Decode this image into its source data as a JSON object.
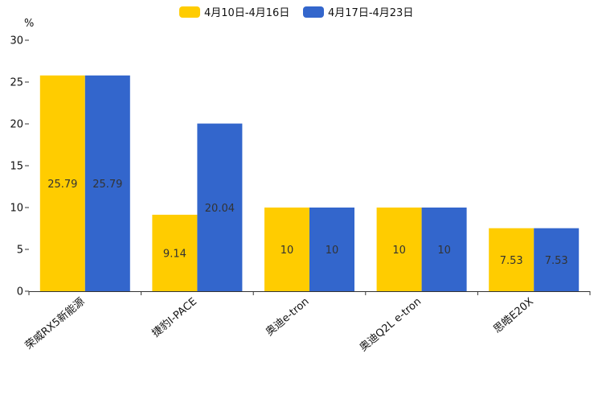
{
  "chart_data": {
    "type": "bar",
    "title": "",
    "ylabel": "%",
    "xlabel": "",
    "ylim": [
      0,
      30
    ],
    "yticks": [
      0,
      5,
      10,
      15,
      20,
      25,
      30
    ],
    "legend_position": "top-center",
    "categories": [
      "荣威RX5新能源",
      "捷豹I-PACE",
      "奥迪e-tron",
      "奥迪Q2L e-tron",
      "思皓E20X"
    ],
    "series": [
      {
        "name": "4月10日-4月16日",
        "color": "#ffcc00",
        "values": [
          25.79,
          9.14,
          10,
          10,
          7.53
        ]
      },
      {
        "name": "4月17日-4月23日",
        "color": "#3366cc",
        "values": [
          25.79,
          20.04,
          10,
          10,
          7.53
        ]
      }
    ]
  }
}
